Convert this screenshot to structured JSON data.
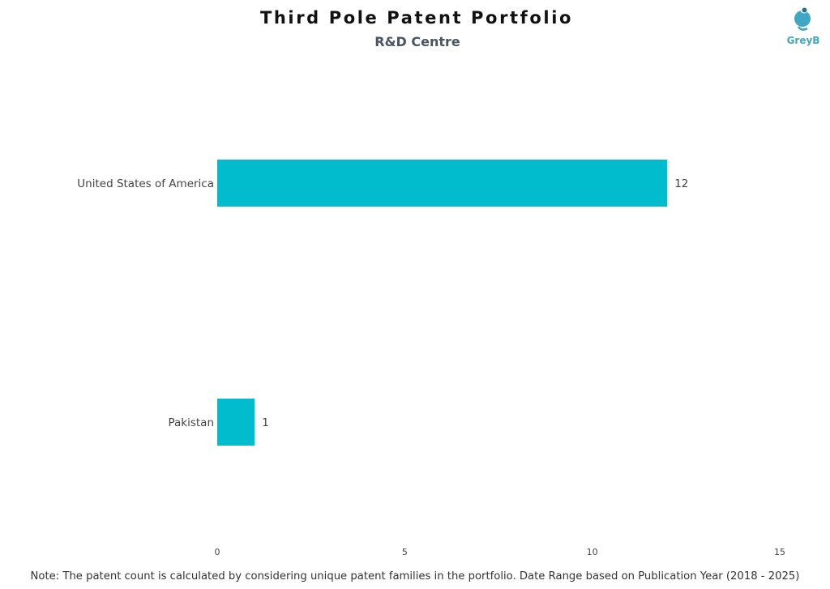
{
  "header": {
    "title": "Third Pole Patent Portfolio",
    "subtitle": "R&D Centre"
  },
  "logo": {
    "text": "GreyB",
    "icon": "greyb-logo-icon",
    "color": "#3fa7c4"
  },
  "note": "Note: The patent count is calculated by considering unique patent families in the portfolio. Date Range based on Publication Year (2018 - 2025)",
  "chart_data": {
    "type": "bar",
    "orientation": "horizontal",
    "title": "Third Pole Patent Portfolio",
    "subtitle": "R&D Centre",
    "categories": [
      "United States of America",
      "Pakistan"
    ],
    "values": [
      12,
      1
    ],
    "data_labels": [
      "12",
      "1"
    ],
    "x_ticks": [
      0,
      5,
      10,
      15
    ],
    "x_tick_labels": [
      "0",
      "5",
      "10",
      "15"
    ],
    "xlim": [
      0,
      15
    ],
    "xlabel": "",
    "ylabel": "",
    "grid": false,
    "legend": "none",
    "bar_color": "#00bccc"
  }
}
